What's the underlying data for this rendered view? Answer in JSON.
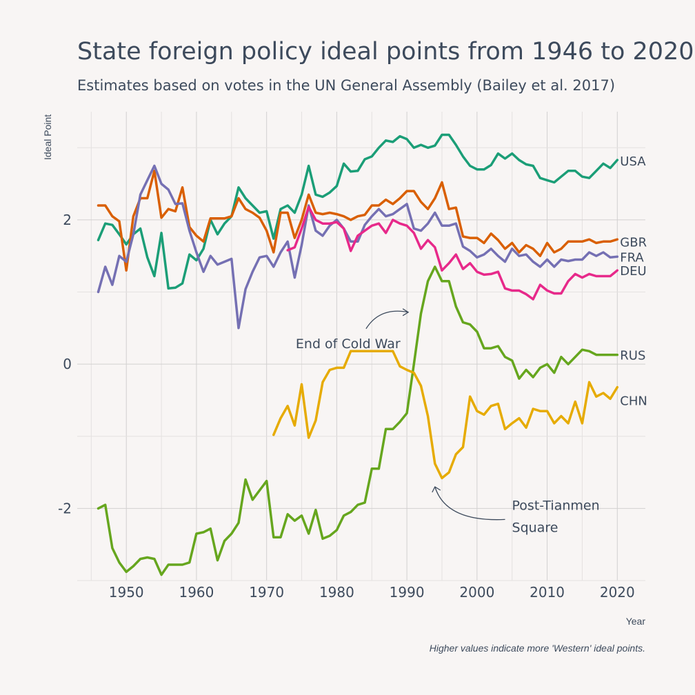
{
  "chart_data": {
    "type": "line",
    "title": "State foreign policy ideal points from 1946 to 2020",
    "subtitle": "Estimates based on votes in the UN General Assembly (Bailey et al. 2017)",
    "xlabel": "Year",
    "ylabel": "Ideal Point",
    "caption": "Higher values indicate more 'Western' ideal points.",
    "xlim": [
      1943,
      2024
    ],
    "ylim": [
      -3.0,
      3.5
    ],
    "x_ticks": [
      1950,
      1960,
      1970,
      1980,
      1990,
      2000,
      2010,
      2020
    ],
    "y_ticks": [
      -2,
      0,
      2
    ],
    "grid": true,
    "legend": "direct labels at line ends",
    "series": [
      {
        "name": "USA",
        "color": "#1b9e77",
        "label_y": 2.82,
        "x": [
          1946,
          1947,
          1948,
          1949,
          1950,
          1951,
          1952,
          1953,
          1954,
          1955,
          1956,
          1957,
          1958,
          1959,
          1960,
          1961,
          1962,
          1963,
          1964,
          1965,
          1966,
          1967,
          1968,
          1969,
          1970,
          1971,
          1972,
          1973,
          1974,
          1975,
          1976,
          1977,
          1978,
          1979,
          1980,
          1981,
          1982,
          1983,
          1984,
          1985,
          1986,
          1987,
          1988,
          1989,
          1990,
          1991,
          1992,
          1993,
          1994,
          1995,
          1996,
          1997,
          1998,
          1999,
          2000,
          2001,
          2002,
          2003,
          2004,
          2005,
          2006,
          2007,
          2008,
          2009,
          2010,
          2011,
          2012,
          2013,
          2014,
          2015,
          2016,
          2017,
          2018,
          2019,
          2020
        ],
        "y": [
          1.72,
          1.95,
          1.93,
          1.8,
          1.66,
          1.8,
          1.88,
          1.48,
          1.22,
          1.82,
          1.05,
          1.06,
          1.12,
          1.52,
          1.44,
          1.6,
          2.0,
          1.8,
          1.95,
          2.05,
          2.45,
          2.3,
          2.2,
          2.1,
          2.12,
          1.74,
          2.15,
          2.2,
          2.1,
          2.35,
          2.75,
          2.35,
          2.32,
          2.38,
          2.47,
          2.78,
          2.67,
          2.68,
          2.84,
          2.88,
          3.0,
          3.1,
          3.08,
          3.16,
          3.12,
          3.0,
          3.04,
          3.0,
          3.03,
          3.18,
          3.18,
          3.04,
          2.88,
          2.75,
          2.7,
          2.7,
          2.76,
          2.92,
          2.85,
          2.92,
          2.83,
          2.77,
          2.75,
          2.58,
          2.55,
          2.52,
          2.6,
          2.68,
          2.68,
          2.6,
          2.58,
          2.68,
          2.78,
          2.72,
          2.83
        ]
      },
      {
        "name": "GBR",
        "color": "#d95f02",
        "label_y": 1.7,
        "x": [
          1946,
          1947,
          1948,
          1949,
          1950,
          1951,
          1952,
          1953,
          1954,
          1955,
          1956,
          1957,
          1958,
          1959,
          1960,
          1961,
          1962,
          1963,
          1964,
          1965,
          1966,
          1967,
          1968,
          1969,
          1970,
          1971,
          1972,
          1973,
          1974,
          1975,
          1976,
          1977,
          1978,
          1979,
          1980,
          1981,
          1982,
          1983,
          1984,
          1985,
          1986,
          1987,
          1988,
          1989,
          1990,
          1991,
          1992,
          1993,
          1994,
          1995,
          1996,
          1997,
          1998,
          1999,
          2000,
          2001,
          2002,
          2003,
          2004,
          2005,
          2006,
          2007,
          2008,
          2009,
          2010,
          2011,
          2012,
          2013,
          2014,
          2015,
          2016,
          2017,
          2018,
          2019,
          2020
        ],
        "y": [
          2.2,
          2.2,
          2.05,
          1.98,
          1.3,
          2.05,
          2.3,
          2.3,
          2.68,
          2.03,
          2.15,
          2.12,
          2.45,
          1.9,
          1.78,
          1.7,
          2.02,
          2.02,
          2.02,
          2.05,
          2.3,
          2.15,
          2.1,
          2.03,
          1.85,
          1.55,
          2.1,
          2.1,
          1.75,
          2.0,
          2.35,
          2.1,
          2.08,
          2.1,
          2.08,
          2.05,
          2.0,
          2.05,
          2.07,
          2.2,
          2.2,
          2.28,
          2.22,
          2.3,
          2.4,
          2.4,
          2.25,
          2.15,
          2.3,
          2.52,
          2.15,
          2.17,
          1.77,
          1.75,
          1.75,
          1.68,
          1.81,
          1.72,
          1.6,
          1.68,
          1.55,
          1.65,
          1.6,
          1.5,
          1.68,
          1.55,
          1.6,
          1.7,
          1.7,
          1.7,
          1.73,
          1.68,
          1.7,
          1.7,
          1.73
        ]
      },
      {
        "name": "FRA",
        "color": "#7570b3",
        "label_y": 1.49,
        "x": [
          1946,
          1947,
          1948,
          1949,
          1950,
          1951,
          1952,
          1953,
          1954,
          1955,
          1956,
          1957,
          1958,
          1959,
          1960,
          1961,
          1962,
          1963,
          1964,
          1965,
          1966,
          1967,
          1968,
          1969,
          1970,
          1971,
          1972,
          1973,
          1974,
          1975,
          1976,
          1977,
          1978,
          1979,
          1980,
          1981,
          1982,
          1983,
          1984,
          1985,
          1986,
          1987,
          1988,
          1989,
          1990,
          1991,
          1992,
          1993,
          1994,
          1995,
          1996,
          1997,
          1998,
          1999,
          2000,
          2001,
          2002,
          2003,
          2004,
          2005,
          2006,
          2007,
          2008,
          2009,
          2010,
          2011,
          2012,
          2013,
          2014,
          2015,
          2016,
          2017,
          2018,
          2019,
          2020
        ],
        "y": [
          1.0,
          1.35,
          1.1,
          1.5,
          1.42,
          1.8,
          2.35,
          2.55,
          2.75,
          2.5,
          2.42,
          2.22,
          2.23,
          1.85,
          1.55,
          1.28,
          1.5,
          1.38,
          1.42,
          1.46,
          0.5,
          1.04,
          1.28,
          1.48,
          1.5,
          1.35,
          1.55,
          1.7,
          1.2,
          1.65,
          2.2,
          1.85,
          1.78,
          1.92,
          2.0,
          1.88,
          1.7,
          1.7,
          1.93,
          2.05,
          2.15,
          2.05,
          2.08,
          2.15,
          2.22,
          1.88,
          1.85,
          1.95,
          2.1,
          1.92,
          1.92,
          1.95,
          1.63,
          1.57,
          1.48,
          1.52,
          1.6,
          1.5,
          1.42,
          1.6,
          1.5,
          1.52,
          1.42,
          1.35,
          1.45,
          1.35,
          1.45,
          1.43,
          1.45,
          1.45,
          1.55,
          1.5,
          1.55,
          1.48,
          1.49
        ]
      },
      {
        "name": "DEU",
        "color": "#e7298a",
        "label_y": 1.3,
        "x": [
          1973,
          1974,
          1975,
          1976,
          1977,
          1978,
          1979,
          1980,
          1981,
          1982,
          1983,
          1984,
          1985,
          1986,
          1987,
          1988,
          1989,
          1990,
          1991,
          1992,
          1993,
          1994,
          1995,
          1996,
          1997,
          1998,
          1999,
          2000,
          2001,
          2002,
          2003,
          2004,
          2005,
          2006,
          2007,
          2008,
          2009,
          2010,
          2011,
          2012,
          2013,
          2014,
          2015,
          2016,
          2017,
          2018,
          2019,
          2020
        ],
        "y": [
          1.58,
          1.62,
          1.88,
          2.18,
          2.0,
          1.95,
          1.95,
          1.97,
          1.88,
          1.57,
          1.78,
          1.85,
          1.92,
          1.95,
          1.82,
          2.0,
          1.95,
          1.92,
          1.82,
          1.6,
          1.72,
          1.62,
          1.3,
          1.4,
          1.52,
          1.32,
          1.4,
          1.28,
          1.24,
          1.25,
          1.28,
          1.05,
          1.02,
          1.02,
          0.97,
          0.9,
          1.1,
          1.02,
          0.98,
          0.98,
          1.15,
          1.25,
          1.2,
          1.25,
          1.22,
          1.22,
          1.22,
          1.3
        ]
      },
      {
        "name": "RUS",
        "color": "#66a61e",
        "label_y": 0.13,
        "x": [
          1946,
          1947,
          1948,
          1949,
          1950,
          1951,
          1952,
          1953,
          1954,
          1955,
          1956,
          1957,
          1958,
          1959,
          1960,
          1961,
          1962,
          1963,
          1964,
          1965,
          1966,
          1967,
          1968,
          1969,
          1970,
          1971,
          1972,
          1973,
          1974,
          1975,
          1976,
          1977,
          1978,
          1979,
          1980,
          1981,
          1982,
          1983,
          1984,
          1985,
          1986,
          1987,
          1988,
          1989,
          1990,
          1991,
          1992,
          1993,
          1994,
          1995,
          1996,
          1997,
          1998,
          1999,
          2000,
          2001,
          2002,
          2003,
          2004,
          2005,
          2006,
          2007,
          2008,
          2009,
          2010,
          2011,
          2012,
          2013,
          2014,
          2015,
          2016,
          2017,
          2018,
          2019,
          2020
        ],
        "y": [
          -2.0,
          -1.95,
          -2.55,
          -2.75,
          -2.88,
          -2.8,
          -2.7,
          -2.68,
          -2.7,
          -2.92,
          -2.78,
          -2.78,
          -2.78,
          -2.75,
          -2.35,
          -2.33,
          -2.28,
          -2.72,
          -2.45,
          -2.35,
          -2.2,
          -1.6,
          -1.88,
          -1.75,
          -1.62,
          -2.4,
          -2.4,
          -2.08,
          -2.17,
          -2.1,
          -2.35,
          -2.02,
          -2.42,
          -2.38,
          -2.3,
          -2.1,
          -2.05,
          -1.95,
          -1.92,
          -1.45,
          -1.45,
          -0.9,
          -0.9,
          -0.8,
          -0.68,
          0.0,
          0.7,
          1.15,
          1.35,
          1.15,
          1.15,
          0.8,
          0.58,
          0.55,
          0.45,
          0.22,
          0.22,
          0.25,
          0.1,
          0.05,
          -0.2,
          -0.08,
          -0.18,
          -0.05,
          0.0,
          -0.12,
          0.1,
          0.0,
          0.1,
          0.2,
          0.18,
          0.13,
          0.13,
          0.13,
          0.13
        ]
      },
      {
        "name": "CHN",
        "color": "#e6ab02",
        "label_y": -0.5,
        "x": [
          1971,
          1972,
          1973,
          1974,
          1975,
          1976,
          1977,
          1978,
          1979,
          1980,
          1981,
          1982,
          1983,
          1984,
          1985,
          1986,
          1987,
          1988,
          1989,
          1990,
          1991,
          1992,
          1993,
          1994,
          1995,
          1996,
          1997,
          1998,
          1999,
          2000,
          2001,
          2002,
          2003,
          2004,
          2005,
          2006,
          2007,
          2008,
          2009,
          2010,
          2011,
          2012,
          2013,
          2014,
          2015,
          2016,
          2017,
          2018,
          2019,
          2020
        ],
        "y": [
          -0.98,
          -0.75,
          -0.58,
          -0.85,
          -0.28,
          -1.02,
          -0.78,
          -0.25,
          -0.08,
          -0.05,
          -0.05,
          0.18,
          0.18,
          0.18,
          0.18,
          0.18,
          0.18,
          0.18,
          -0.03,
          -0.08,
          -0.12,
          -0.3,
          -0.72,
          -1.38,
          -1.58,
          -1.5,
          -1.25,
          -1.15,
          -0.45,
          -0.65,
          -0.7,
          -0.58,
          -0.55,
          -0.9,
          -0.82,
          -0.75,
          -0.88,
          -0.62,
          -0.65,
          -0.65,
          -0.82,
          -0.72,
          -0.82,
          -0.52,
          -0.82,
          -0.25,
          -0.45,
          -0.4,
          -0.48,
          -0.32
        ]
      }
    ],
    "annotations": [
      {
        "lines": [
          "End of Cold War"
        ],
        "x": 1983,
        "y": 0.3,
        "arrow_to": [
          1990.2,
          0.72
        ]
      },
      {
        "lines": [
          "Post-Tianmen",
          "Square"
        ],
        "x": 2004,
        "y": -2.0,
        "arrow_to": [
          1994,
          -1.7
        ]
      }
    ]
  }
}
